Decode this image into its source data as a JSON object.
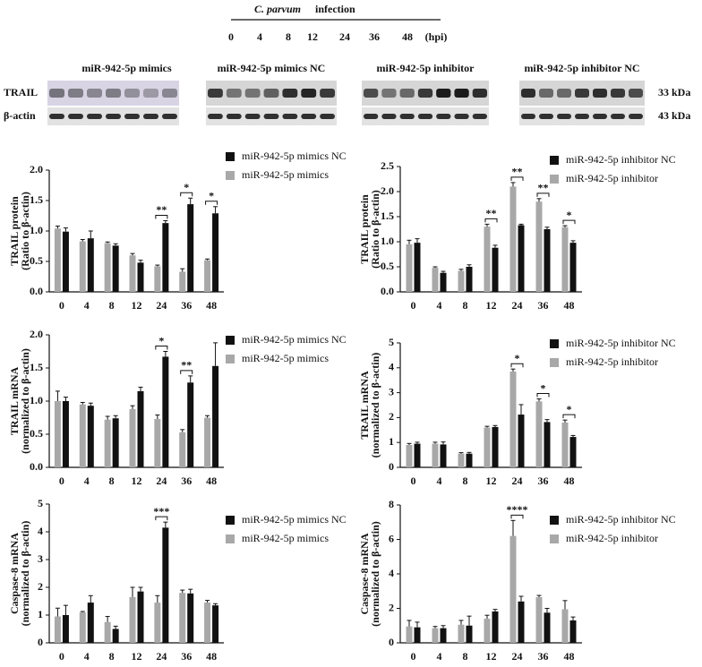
{
  "header": {
    "organism": "C. parvum",
    "title": "infection",
    "timepoints": [
      "0",
      "4",
      "8",
      "12",
      "24",
      "36",
      "48"
    ],
    "unit": "(hpi)"
  },
  "blots": {
    "panels": [
      "miR-942-5p mimics",
      "miR-942-5p mimics NC",
      "miR-942-5p inhibitor",
      "miR-942-5p inhibitor NC"
    ],
    "rows": [
      {
        "label": "TRAIL",
        "size": "33 kDa"
      },
      {
        "label": "β-actin",
        "size": "43 kDa"
      }
    ]
  },
  "chart_data": [
    {
      "type": "bar",
      "ylabel": "TRAIL protein",
      "ylabel_note": "(Ratio to β-actin)",
      "categories": [
        "0",
        "4",
        "8",
        "12",
        "24",
        "36",
        "48"
      ],
      "series": [
        {
          "name": "miR-942-5p mimics NC",
          "color": "#111111",
          "values": [
            0.99,
            0.88,
            0.76,
            0.48,
            1.13,
            1.44,
            1.29
          ],
          "errors": [
            0.06,
            0.12,
            0.03,
            0.04,
            0.04,
            0.1,
            0.11
          ]
        },
        {
          "name": "miR-942-5p mimics",
          "color": "#a8a8a8",
          "values": [
            1.04,
            0.83,
            0.8,
            0.6,
            0.42,
            0.33,
            0.52
          ],
          "errors": [
            0.04,
            0.03,
            0.02,
            0.03,
            0.02,
            0.05,
            0.02
          ]
        }
      ],
      "ylim": [
        0,
        2
      ],
      "yticks": [
        {
          "value": 0,
          "label": "0.0"
        },
        0.5,
        {
          "value": 1,
          "label": "1.0"
        },
        1.5,
        {
          "value": 2,
          "label": "2.0"
        }
      ],
      "annotations": [
        {
          "text": "**",
          "category": "24"
        },
        {
          "text": "*",
          "category": "36"
        },
        {
          "text": "*",
          "category": "48"
        }
      ]
    },
    {
      "type": "bar",
      "ylabel": "TRAIL protein",
      "ylabel_note": "(Ratio to β-actin)",
      "categories": [
        "0",
        "4",
        "8",
        "12",
        "24",
        "36",
        "48"
      ],
      "series": [
        {
          "name": "miR-942-5p inhibitor NC",
          "color": "#111111",
          "values": [
            0.98,
            0.38,
            0.5,
            0.88,
            1.33,
            1.25,
            0.98
          ],
          "errors": [
            0.08,
            0.03,
            0.04,
            0.05,
            0.02,
            0.04,
            0.04
          ]
        },
        {
          "name": "miR-942-5p inhibitor",
          "color": "#a8a8a8",
          "values": [
            0.95,
            0.48,
            0.42,
            1.3,
            2.1,
            1.8,
            1.29
          ],
          "errors": [
            0.08,
            0.02,
            0.03,
            0.05,
            0.08,
            0.06,
            0.03
          ]
        }
      ],
      "ylim": [
        0,
        2.5
      ],
      "yticks": [
        {
          "value": 0,
          "label": "0.0"
        },
        0.5,
        {
          "value": 1,
          "label": "1.0"
        },
        1.5,
        {
          "value": 2,
          "label": "2.0"
        },
        2.5
      ],
      "annotations": [
        {
          "text": "**",
          "category": "12"
        },
        {
          "text": "**",
          "category": "24"
        },
        {
          "text": "**",
          "category": "36"
        },
        {
          "text": "*",
          "category": "48"
        }
      ]
    },
    {
      "type": "bar",
      "ylabel": "TRAIL mRNA",
      "ylabel_note": "(normalized to β-actin)",
      "categories": [
        "0",
        "4",
        "8",
        "12",
        "24",
        "36",
        "48"
      ],
      "series": [
        {
          "name": "miR-942-5p mimics NC",
          "color": "#111111",
          "values": [
            1.0,
            0.93,
            0.74,
            1.15,
            1.67,
            1.28,
            1.53
          ],
          "errors": [
            0.06,
            0.04,
            0.04,
            0.06,
            0.08,
            0.1,
            0.35
          ]
        },
        {
          "name": "miR-942-5p mimics",
          "color": "#a8a8a8",
          "values": [
            1.0,
            0.95,
            0.72,
            0.88,
            0.73,
            0.53,
            0.75
          ],
          "errors": [
            0.15,
            0.03,
            0.05,
            0.05,
            0.06,
            0.04,
            0.03
          ]
        }
      ],
      "ylim": [
        0,
        2
      ],
      "yticks": [
        {
          "value": 0,
          "label": "0.0"
        },
        0.5,
        {
          "value": 1,
          "label": "1.0"
        },
        1.5,
        {
          "value": 2,
          "label": "2.0"
        }
      ],
      "annotations": [
        {
          "text": "*",
          "category": "24"
        },
        {
          "text": "**",
          "category": "36"
        }
      ]
    },
    {
      "type": "bar",
      "ylabel": "TRAIL mRNA",
      "ylabel_note": "(normalized to β-actin)",
      "categories": [
        "0",
        "4",
        "8",
        "12",
        "24",
        "36",
        "48"
      ],
      "series": [
        {
          "name": "miR-942-5p inhibitor NC",
          "color": "#111111",
          "values": [
            0.95,
            0.92,
            0.55,
            1.62,
            2.12,
            1.82,
            1.22
          ],
          "errors": [
            0.06,
            0.1,
            0.05,
            0.06,
            0.4,
            0.1,
            0.06
          ]
        },
        {
          "name": "miR-942-5p inhibitor",
          "color": "#a8a8a8",
          "values": [
            0.9,
            0.95,
            0.55,
            1.6,
            3.85,
            2.65,
            1.8
          ],
          "errors": [
            0.06,
            0.06,
            0.04,
            0.05,
            0.1,
            0.1,
            0.1
          ]
        }
      ],
      "ylim": [
        0,
        5
      ],
      "yticks": [
        0,
        1,
        2,
        3,
        4,
        5
      ],
      "annotations": [
        {
          "text": "*",
          "category": "24"
        },
        {
          "text": "*",
          "category": "36"
        },
        {
          "text": "*",
          "category": "48"
        }
      ]
    },
    {
      "type": "bar",
      "ylabel": "Caspase-8 mRNA",
      "ylabel_note": "(normalized to β-actin)",
      "categories": [
        "0",
        "4",
        "8",
        "12",
        "24",
        "36",
        "48"
      ],
      "series": [
        {
          "name": "miR-942-5p mimics  NC",
          "color": "#111111",
          "values": [
            1.0,
            1.45,
            0.5,
            1.85,
            4.15,
            1.78,
            1.35
          ],
          "errors": [
            0.35,
            0.25,
            0.1,
            0.15,
            0.2,
            0.15,
            0.06
          ]
        },
        {
          "name": "miR-942-5p mimics",
          "color": "#a8a8a8",
          "values": [
            0.95,
            1.1,
            0.75,
            1.65,
            1.45,
            1.8,
            1.45
          ],
          "errors": [
            0.3,
            0.03,
            0.2,
            0.35,
            0.25,
            0.1,
            0.08
          ]
        }
      ],
      "ylim": [
        0,
        5
      ],
      "yticks": [
        0,
        1,
        2,
        3,
        4,
        5
      ],
      "annotations": [
        {
          "text": "***",
          "category": "24"
        }
      ]
    },
    {
      "type": "bar",
      "ylabel": "Caspase-8 mRNA",
      "ylabel_note": "(normalized to β-actin)",
      "categories": [
        "0",
        "4",
        "8",
        "12",
        "24",
        "36",
        "48"
      ],
      "series": [
        {
          "name": "miR-942-5p inhibitor NC",
          "color": "#111111",
          "values": [
            0.9,
            0.85,
            1.0,
            1.82,
            2.4,
            1.75,
            1.3
          ],
          "errors": [
            0.3,
            0.15,
            0.55,
            0.12,
            0.3,
            0.25,
            0.2
          ]
        },
        {
          "name": "miR-942-5p inhibitor",
          "color": "#a8a8a8",
          "values": [
            0.95,
            0.85,
            1.05,
            1.4,
            6.2,
            2.65,
            1.95
          ],
          "errors": [
            0.35,
            0.1,
            0.25,
            0.2,
            0.9,
            0.1,
            0.5
          ]
        }
      ],
      "ylim": [
        0,
        8
      ],
      "yticks": [
        0,
        2,
        4,
        6,
        8
      ],
      "annotations": [
        {
          "text": "****",
          "category": "24"
        }
      ]
    }
  ]
}
